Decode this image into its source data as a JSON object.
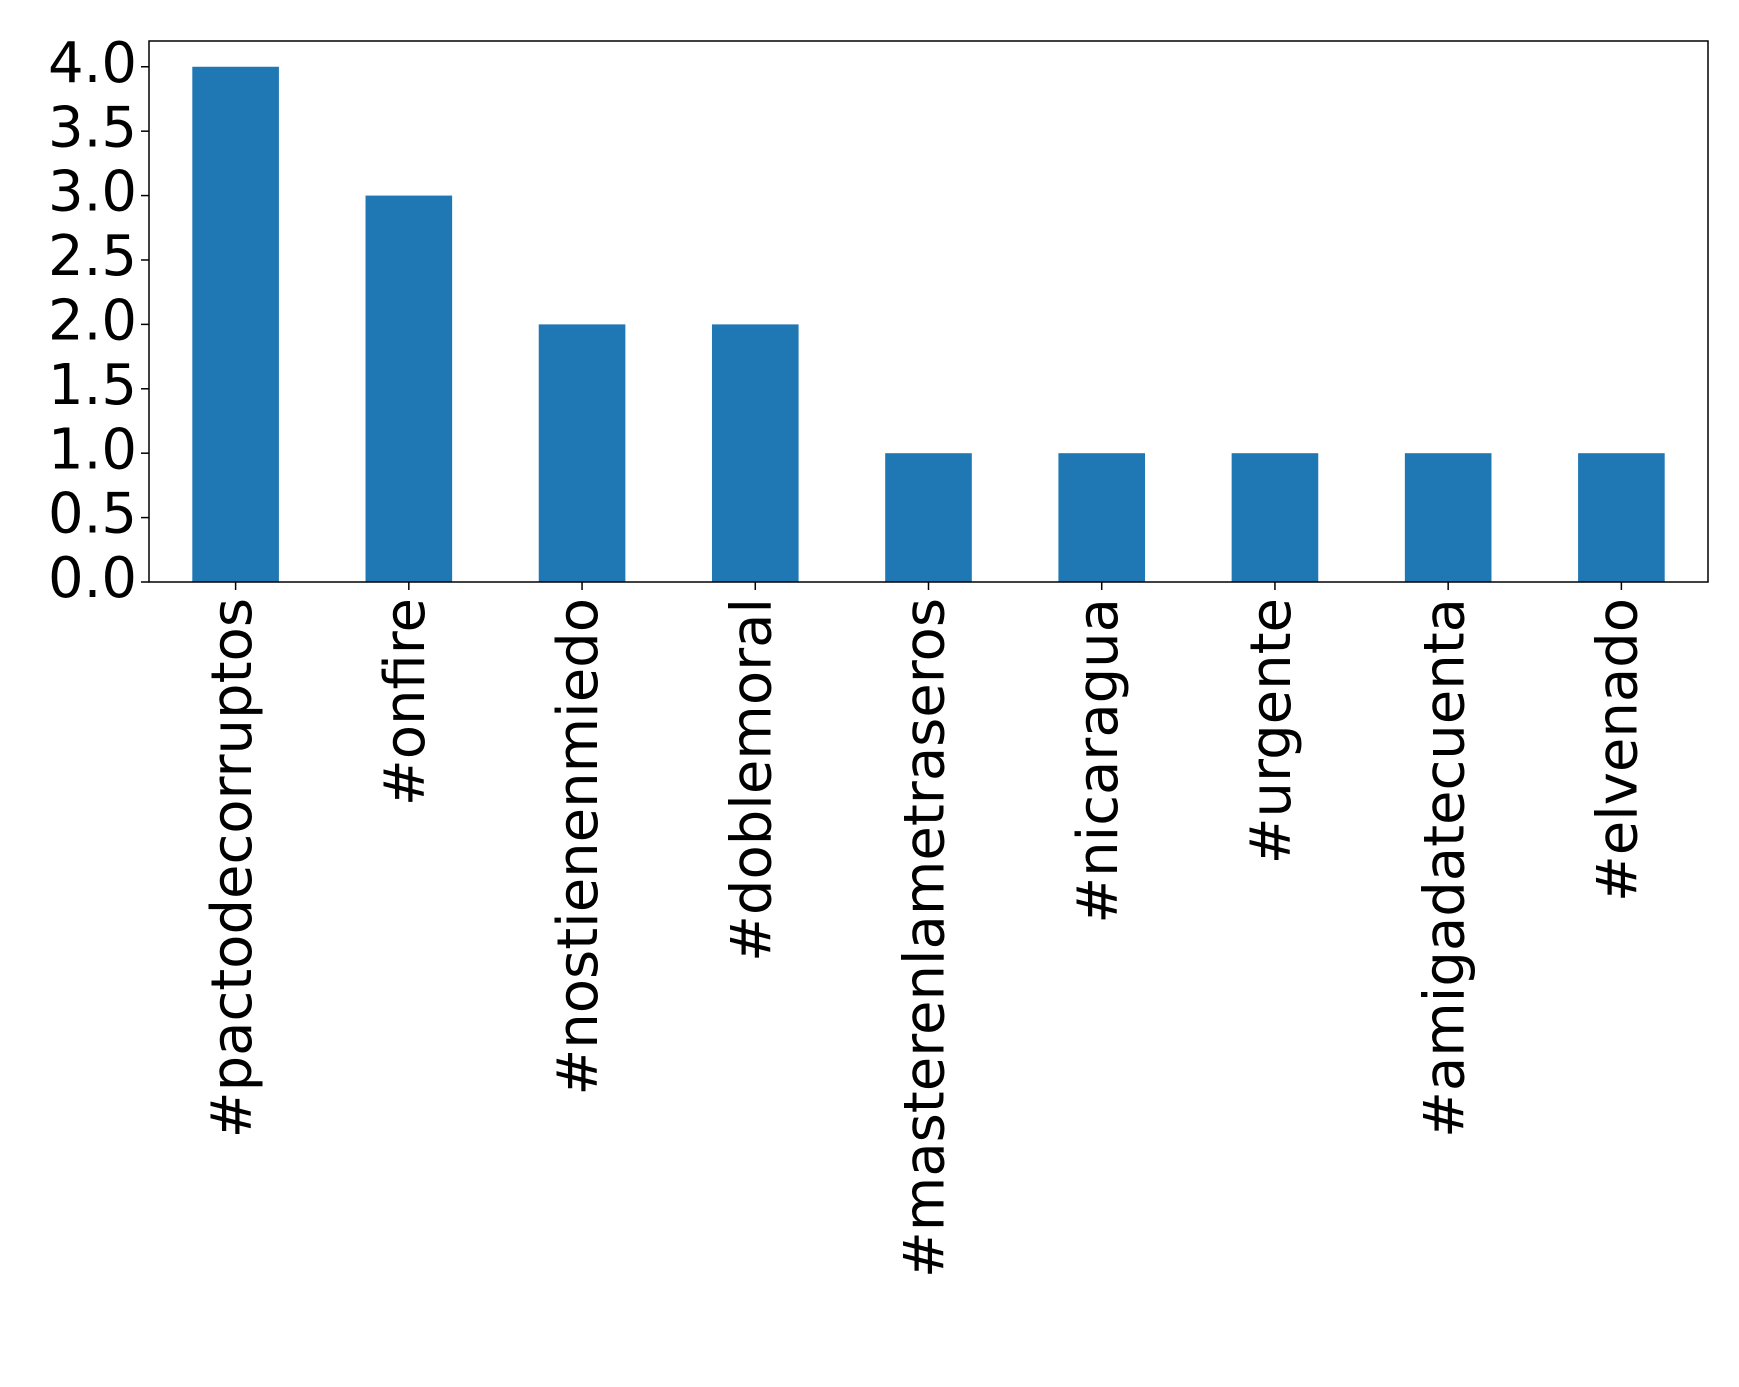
{
  "chart_data": {
    "type": "bar",
    "categories": [
      "#pactodecorruptos",
      "#onfire",
      "#nostienenmiedo",
      "#doblemoral",
      "#masterenlametraseros",
      "#nicaragua",
      "#urgente",
      "#amigadatecuenta",
      "#elvenado"
    ],
    "values": [
      4,
      3,
      2,
      2,
      1,
      1,
      1,
      1,
      1
    ],
    "color": "#1f77b4",
    "ylim": [
      0,
      4.2
    ],
    "yticks": [
      {
        "value": 0,
        "label": "0.0"
      },
      {
        "value": 0.5,
        "label": "0.5"
      },
      {
        "value": 1,
        "label": "1.0"
      },
      {
        "value": 1.5,
        "label": "1.5"
      },
      {
        "value": 2,
        "label": "2.0"
      },
      {
        "value": 2.5,
        "label": "2.5"
      },
      {
        "value": 3,
        "label": "3.0"
      },
      {
        "value": 3.5,
        "label": "3.5"
      },
      {
        "value": 4,
        "label": "4.0"
      }
    ],
    "grid": false
  }
}
